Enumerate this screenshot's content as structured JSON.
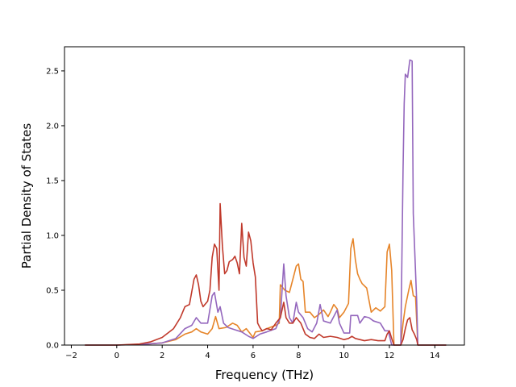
{
  "chart_data": {
    "type": "line",
    "title": "",
    "xlabel": "Frequency (THz)",
    "ylabel": "Partial Density of States",
    "xlim": [
      -2.3,
      15.3
    ],
    "ylim": [
      0.0,
      2.72
    ],
    "grid": false,
    "legend": "none",
    "x_ticks": [
      -2,
      0,
      2,
      4,
      6,
      8,
      10,
      12,
      14
    ],
    "x_tick_labels": [
      "−2",
      "0",
      "2",
      "4",
      "6",
      "8",
      "10",
      "12",
      "14"
    ],
    "y_ticks": [
      0.0,
      0.5,
      1.0,
      1.5,
      2.0,
      2.5
    ],
    "y_tick_labels": [
      "0.0",
      "0.5",
      "1.0",
      "1.5",
      "2.0",
      "2.5"
    ],
    "series": [
      {
        "color": "#e6852a",
        "points": [
          [
            -1.4,
            0
          ],
          [
            0,
            0
          ],
          [
            1,
            0.005
          ],
          [
            2,
            0.02
          ],
          [
            2.6,
            0.05
          ],
          [
            3.0,
            0.1
          ],
          [
            3.3,
            0.12
          ],
          [
            3.5,
            0.15
          ],
          [
            3.7,
            0.12
          ],
          [
            4.0,
            0.1
          ],
          [
            4.2,
            0.15
          ],
          [
            4.35,
            0.26
          ],
          [
            4.5,
            0.15
          ],
          [
            4.8,
            0.16
          ],
          [
            5.1,
            0.2
          ],
          [
            5.3,
            0.18
          ],
          [
            5.5,
            0.12
          ],
          [
            5.7,
            0.15
          ],
          [
            5.85,
            0.11
          ],
          [
            6.0,
            0.07
          ],
          [
            6.1,
            0.12
          ],
          [
            6.4,
            0.13
          ],
          [
            6.6,
            0.15
          ],
          [
            7.0,
            0.18
          ],
          [
            7.15,
            0.2
          ],
          [
            7.2,
            0.55
          ],
          [
            7.4,
            0.5
          ],
          [
            7.6,
            0.48
          ],
          [
            7.75,
            0.6
          ],
          [
            7.9,
            0.72
          ],
          [
            8.0,
            0.74
          ],
          [
            8.1,
            0.6
          ],
          [
            8.2,
            0.58
          ],
          [
            8.3,
            0.3
          ],
          [
            8.5,
            0.3
          ],
          [
            8.7,
            0.25
          ],
          [
            8.9,
            0.28
          ],
          [
            9.1,
            0.32
          ],
          [
            9.3,
            0.26
          ],
          [
            9.4,
            0.3
          ],
          [
            9.55,
            0.37
          ],
          [
            9.7,
            0.33
          ],
          [
            9.8,
            0.25
          ],
          [
            10.0,
            0.3
          ],
          [
            10.2,
            0.38
          ],
          [
            10.3,
            0.88
          ],
          [
            10.4,
            0.97
          ],
          [
            10.5,
            0.78
          ],
          [
            10.6,
            0.65
          ],
          [
            10.7,
            0.6
          ],
          [
            10.8,
            0.56
          ],
          [
            11.0,
            0.52
          ],
          [
            11.2,
            0.3
          ],
          [
            11.4,
            0.34
          ],
          [
            11.6,
            0.31
          ],
          [
            11.8,
            0.35
          ],
          [
            11.9,
            0.85
          ],
          [
            12.0,
            0.92
          ],
          [
            12.1,
            0.68
          ],
          [
            12.2,
            0.0
          ],
          [
            12.5,
            0.0
          ],
          [
            12.6,
            0.2
          ],
          [
            12.7,
            0.35
          ],
          [
            12.85,
            0.5
          ],
          [
            12.95,
            0.59
          ],
          [
            13.05,
            0.45
          ],
          [
            13.15,
            0.44
          ],
          [
            13.25,
            0.0
          ],
          [
            14.5,
            0.0
          ]
        ]
      },
      {
        "color": "#9467bd",
        "points": [
          [
            -1.4,
            0
          ],
          [
            0,
            0
          ],
          [
            1,
            0.005
          ],
          [
            2,
            0.02
          ],
          [
            2.6,
            0.06
          ],
          [
            3.0,
            0.15
          ],
          [
            3.3,
            0.18
          ],
          [
            3.5,
            0.25
          ],
          [
            3.7,
            0.2
          ],
          [
            4.0,
            0.2
          ],
          [
            4.2,
            0.45
          ],
          [
            4.3,
            0.48
          ],
          [
            4.45,
            0.3
          ],
          [
            4.55,
            0.35
          ],
          [
            4.7,
            0.2
          ],
          [
            4.9,
            0.16
          ],
          [
            5.2,
            0.14
          ],
          [
            5.5,
            0.12
          ],
          [
            5.8,
            0.08
          ],
          [
            6.0,
            0.06
          ],
          [
            6.3,
            0.1
          ],
          [
            6.6,
            0.12
          ],
          [
            7.0,
            0.15
          ],
          [
            7.2,
            0.25
          ],
          [
            7.35,
            0.74
          ],
          [
            7.45,
            0.45
          ],
          [
            7.6,
            0.25
          ],
          [
            7.75,
            0.2
          ],
          [
            7.9,
            0.39
          ],
          [
            8.0,
            0.3
          ],
          [
            8.2,
            0.25
          ],
          [
            8.4,
            0.15
          ],
          [
            8.6,
            0.12
          ],
          [
            8.8,
            0.2
          ],
          [
            8.95,
            0.37
          ],
          [
            9.1,
            0.22
          ],
          [
            9.4,
            0.2
          ],
          [
            9.7,
            0.32
          ],
          [
            9.8,
            0.2
          ],
          [
            10.0,
            0.11
          ],
          [
            10.25,
            0.11
          ],
          [
            10.3,
            0.27
          ],
          [
            10.6,
            0.27
          ],
          [
            10.7,
            0.2
          ],
          [
            10.9,
            0.26
          ],
          [
            11.1,
            0.25
          ],
          [
            11.3,
            0.22
          ],
          [
            11.6,
            0.2
          ],
          [
            11.8,
            0.13
          ],
          [
            11.95,
            0.13
          ],
          [
            12.1,
            0.0
          ],
          [
            12.5,
            0.0
          ],
          [
            12.6,
            1.6
          ],
          [
            12.65,
            2.2
          ],
          [
            12.7,
            2.47
          ],
          [
            12.8,
            2.44
          ],
          [
            12.9,
            2.6
          ],
          [
            13.0,
            2.59
          ],
          [
            13.05,
            1.2
          ],
          [
            13.2,
            0.4
          ],
          [
            13.25,
            0.0
          ],
          [
            14.5,
            0.0
          ]
        ]
      },
      {
        "color": "#c0392b",
        "points": [
          [
            -1.4,
            0
          ],
          [
            0,
            0
          ],
          [
            1,
            0.01
          ],
          [
            1.5,
            0.03
          ],
          [
            2,
            0.07
          ],
          [
            2.5,
            0.15
          ],
          [
            2.8,
            0.25
          ],
          [
            3.0,
            0.35
          ],
          [
            3.2,
            0.37
          ],
          [
            3.4,
            0.6
          ],
          [
            3.5,
            0.64
          ],
          [
            3.6,
            0.55
          ],
          [
            3.7,
            0.4
          ],
          [
            3.8,
            0.35
          ],
          [
            4.0,
            0.4
          ],
          [
            4.1,
            0.5
          ],
          [
            4.2,
            0.8
          ],
          [
            4.3,
            0.92
          ],
          [
            4.4,
            0.88
          ],
          [
            4.5,
            0.5
          ],
          [
            4.55,
            1.29
          ],
          [
            4.65,
            0.9
          ],
          [
            4.75,
            0.65
          ],
          [
            4.85,
            0.68
          ],
          [
            4.95,
            0.76
          ],
          [
            5.1,
            0.78
          ],
          [
            5.2,
            0.81
          ],
          [
            5.3,
            0.75
          ],
          [
            5.4,
            0.65
          ],
          [
            5.5,
            1.11
          ],
          [
            5.6,
            0.8
          ],
          [
            5.7,
            0.72
          ],
          [
            5.8,
            1.03
          ],
          [
            5.9,
            0.95
          ],
          [
            6.0,
            0.75
          ],
          [
            6.1,
            0.62
          ],
          [
            6.2,
            0.2
          ],
          [
            6.3,
            0.16
          ],
          [
            6.4,
            0.13
          ],
          [
            6.6,
            0.15
          ],
          [
            6.8,
            0.14
          ],
          [
            7.0,
            0.2
          ],
          [
            7.2,
            0.25
          ],
          [
            7.35,
            0.39
          ],
          [
            7.45,
            0.25
          ],
          [
            7.6,
            0.2
          ],
          [
            7.75,
            0.2
          ],
          [
            7.9,
            0.25
          ],
          [
            8.1,
            0.2
          ],
          [
            8.3,
            0.1
          ],
          [
            8.5,
            0.07
          ],
          [
            8.7,
            0.06
          ],
          [
            8.9,
            0.1
          ],
          [
            9.1,
            0.07
          ],
          [
            9.4,
            0.08
          ],
          [
            9.7,
            0.07
          ],
          [
            10.0,
            0.05
          ],
          [
            10.2,
            0.06
          ],
          [
            10.35,
            0.08
          ],
          [
            10.5,
            0.06
          ],
          [
            10.7,
            0.05
          ],
          [
            10.9,
            0.04
          ],
          [
            11.2,
            0.05
          ],
          [
            11.5,
            0.04
          ],
          [
            11.8,
            0.04
          ],
          [
            11.9,
            0.1
          ],
          [
            12.0,
            0.13
          ],
          [
            12.1,
            0.06
          ],
          [
            12.2,
            0.0
          ],
          [
            12.5,
            0.0
          ],
          [
            12.6,
            0.05
          ],
          [
            12.7,
            0.15
          ],
          [
            12.8,
            0.23
          ],
          [
            12.9,
            0.25
          ],
          [
            13.0,
            0.14
          ],
          [
            13.1,
            0.1
          ],
          [
            13.2,
            0.05
          ],
          [
            13.25,
            0.0
          ],
          [
            14.5,
            0.0
          ]
        ]
      }
    ]
  }
}
